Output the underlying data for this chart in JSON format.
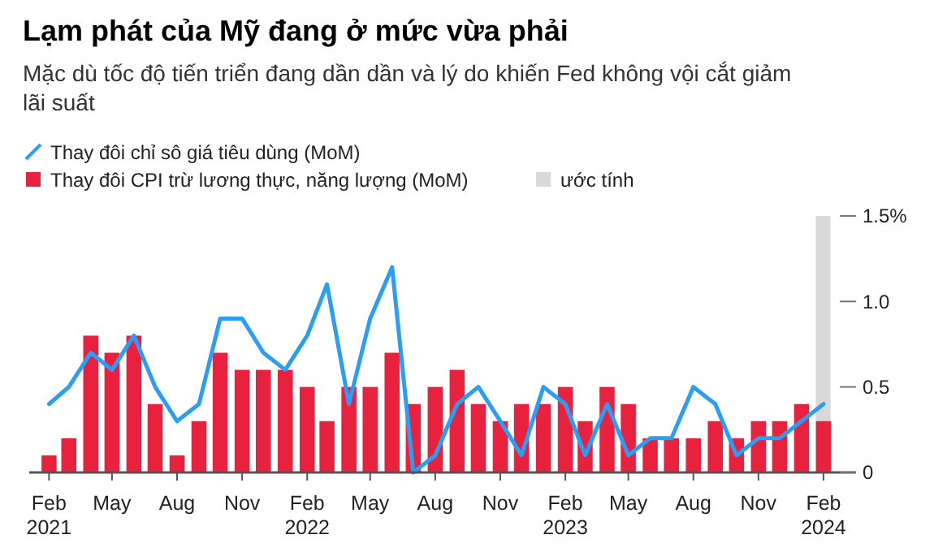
{
  "chart_data": {
    "type": "bar",
    "title": "Lạm phát của Mỹ đang ở mức vừa phải",
    "subtitle": "Mặc dù tốc độ tiến triển đang dần dần và lý do khiến Fed không vội cắt giảm lãi suất",
    "x": [
      "2021-02",
      "2021-03",
      "2021-04",
      "2021-05",
      "2021-06",
      "2021-07",
      "2021-08",
      "2021-09",
      "2021-10",
      "2021-11",
      "2021-12",
      "2022-01",
      "2022-02",
      "2022-03",
      "2022-04",
      "2022-05",
      "2022-06",
      "2022-07",
      "2022-08",
      "2022-09",
      "2022-10",
      "2022-11",
      "2022-12",
      "2023-01",
      "2023-02",
      "2023-03",
      "2023-04",
      "2023-05",
      "2023-06",
      "2023-07",
      "2023-08",
      "2023-09",
      "2023-10",
      "2023-11",
      "2023-12",
      "2024-01",
      "2024-02"
    ],
    "series": [
      {
        "name": "Thay đôi chỉ sô giá tiêu dùng (MoM)",
        "type": "line",
        "color": "#2a9df4",
        "values": [
          0.4,
          0.5,
          0.7,
          0.6,
          0.8,
          0.5,
          0.3,
          0.4,
          0.9,
          0.9,
          0.7,
          0.6,
          0.8,
          1.1,
          0.4,
          0.9,
          1.2,
          0.0,
          0.1,
          0.4,
          0.5,
          0.3,
          0.1,
          0.5,
          0.4,
          0.1,
          0.4,
          0.1,
          0.2,
          0.2,
          0.5,
          0.4,
          0.1,
          0.2,
          0.2,
          0.3,
          0.4
        ]
      },
      {
        "name": "Thay đôi CPI trừ lương thực, năng lượng (MoM)",
        "color": "#e8213f",
        "values": [
          0.1,
          0.2,
          0.8,
          0.7,
          0.8,
          0.4,
          0.1,
          0.3,
          0.7,
          0.6,
          0.6,
          0.6,
          0.5,
          0.3,
          0.5,
          0.5,
          0.7,
          0.4,
          0.5,
          0.6,
          0.4,
          0.3,
          0.4,
          0.4,
          0.5,
          0.3,
          0.5,
          0.4,
          0.2,
          0.2,
          0.2,
          0.3,
          0.2,
          0.3,
          0.3,
          0.4,
          0.3
        ]
      }
    ],
    "bands": [
      {
        "axis": "x",
        "from": "2024-01-21",
        "to": "2024-02-11",
        "label": "ước tính",
        "color": "#d9d9d9"
      }
    ],
    "xlim": [
      "2021-01-04",
      "2024-03-18"
    ],
    "xticks": [
      {
        "value": "2021-02",
        "label": "Feb\n2021"
      },
      {
        "value": "2021-05",
        "label": "May"
      },
      {
        "value": "2021-08",
        "label": "Aug"
      },
      {
        "value": "2021-11",
        "label": "Nov"
      },
      {
        "value": "2022-02",
        "label": "Feb\n2022"
      },
      {
        "value": "2022-05",
        "label": "May"
      },
      {
        "value": "2022-08",
        "label": "Aug"
      },
      {
        "value": "2022-11",
        "label": "Nov"
      },
      {
        "value": "2023-02",
        "label": "Feb\n2023"
      },
      {
        "value": "2023-05",
        "label": "May"
      },
      {
        "value": "2023-08",
        "label": "Aug"
      },
      {
        "value": "2023-11",
        "label": "Nov"
      },
      {
        "value": "2024-02",
        "label": "Feb\n2024"
      }
    ],
    "ylim": [
      0,
      1.5
    ],
    "yticks": [
      0,
      0.5,
      {
        "value": 1,
        "label": "1.0"
      },
      {
        "value": 1.5,
        "label": "1.5%"
      }
    ],
    "legend": "top left",
    "grid": false
  }
}
